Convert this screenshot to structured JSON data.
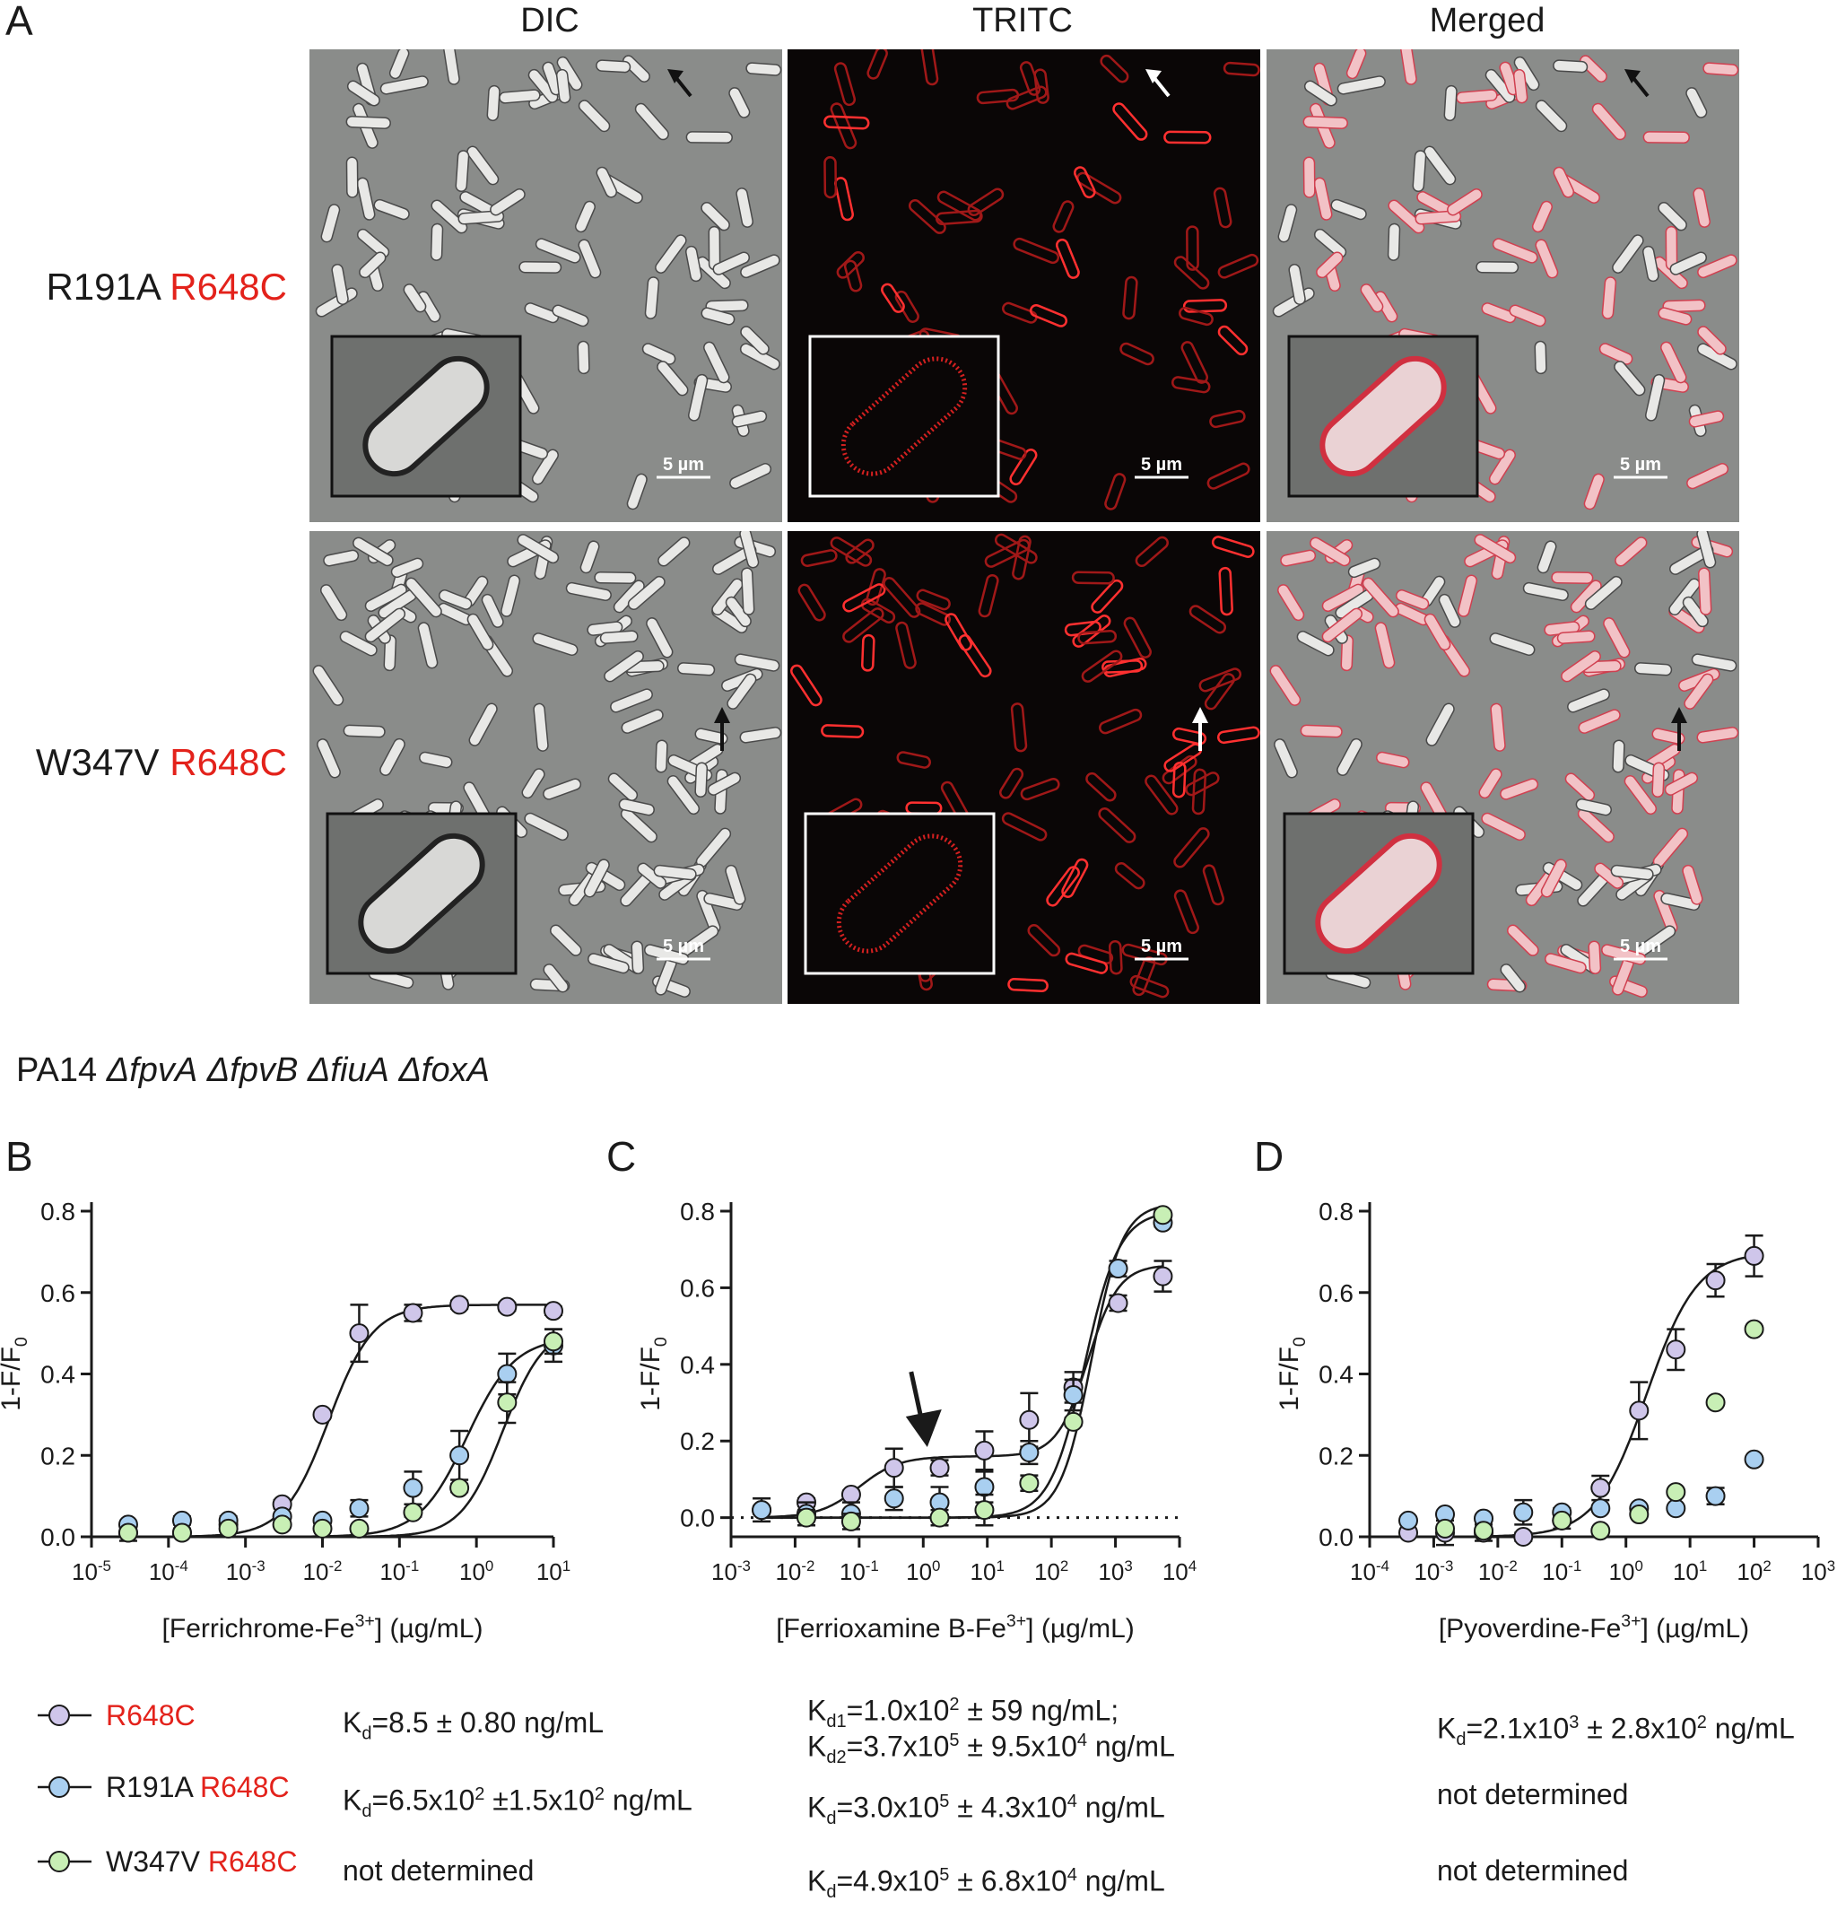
{
  "panels": {
    "a_letter": "A",
    "b_letter": "B",
    "c_letter": "C",
    "d_letter": "D"
  },
  "microscopy": {
    "columns": [
      "DIC",
      "TRITC",
      "Merged"
    ],
    "rows": [
      {
        "mutation": "R191A",
        "suffix": "R648C"
      },
      {
        "mutation": "W347V",
        "suffix": "R648C"
      }
    ],
    "scale_bar": "5 µm"
  },
  "strain": {
    "prefix": "PA14 ",
    "genes": [
      "ΔfpvA",
      "ΔfpvB",
      "ΔfiuA",
      "ΔfoxA"
    ]
  },
  "colors": {
    "R648C": "#cfc6ea",
    "R191A_R648C": "#a9cff0",
    "W347V_R648C": "#c8efb5",
    "red_label": "#e3221b"
  },
  "legend": [
    {
      "name_black": "",
      "name_red": "R648C",
      "color_key": "R648C"
    },
    {
      "name_black": "R191A ",
      "name_red": "R648C",
      "color_key": "R191A_R648C"
    },
    {
      "name_black": "W347V ",
      "name_red": "R648C",
      "color_key": "W347V_R648C"
    }
  ],
  "kd": {
    "B": [
      "K_d=8.5 ± 0.80 ng/mL",
      "K_d=6.5x10^2 ±1.5x10^2 ng/mL",
      "not determined"
    ],
    "C": [
      "K_d1=1.0x10^2 ± 59 ng/mL;",
      "K_d2=3.7x10^5 ± 9.5x10^4 ng/mL",
      "K_d=3.0x10^5 ± 4.3x10^4 ng/mL",
      "K_d=4.9x10^5 ± 6.8x10^4 ng/mL"
    ],
    "D": [
      "K_d=2.1x10^3 ± 2.8x10^2 ng/mL",
      "not determined",
      "not determined"
    ]
  },
  "chart_data": [
    {
      "panel": "B",
      "type": "scatter",
      "xscale": "log",
      "xlabel": "[Ferrichrome-Fe3+] (µg/mL)",
      "ylabel": "1-F/F0",
      "xlim": [
        1e-05,
        10
      ],
      "ylim": [
        0,
        0.8
      ],
      "xticks": [
        "10-5",
        "10-4",
        "10-3",
        "10-2",
        "10-1",
        "100",
        "101"
      ],
      "yticks": [
        "0.0",
        "0.2",
        "0.4",
        "0.6",
        "0.8"
      ],
      "reference_line_y": 0,
      "series": [
        {
          "name": "R648C",
          "color_key": "R648C",
          "x": [
            3e-05,
            0.00015,
            0.0006,
            0.003,
            0.01,
            0.03,
            0.15,
            0.6,
            2.5,
            10
          ],
          "y": [
            0.01,
            0.01,
            0.03,
            0.08,
            0.3,
            0.5,
            0.55,
            0.57,
            0.565,
            0.555
          ],
          "err": [
            0.02,
            0.01,
            0.01,
            0.01,
            0,
            0.07,
            0.02,
            0.01,
            0.01,
            0.01
          ]
        },
        {
          "name": "R191A R648C",
          "color_key": "R191A_R648C",
          "x": [
            3e-05,
            0.00015,
            0.0006,
            0.003,
            0.01,
            0.03,
            0.15,
            0.6,
            2.5,
            10
          ],
          "y": [
            0.03,
            0.04,
            0.04,
            0.05,
            0.04,
            0.07,
            0.12,
            0.2,
            0.4,
            0.47
          ],
          "err": [
            0,
            0.01,
            0.01,
            0,
            0,
            0.02,
            0.04,
            0.06,
            0.05,
            0.04
          ]
        },
        {
          "name": "W347V R648C",
          "color_key": "W347V_R648C",
          "x": [
            3e-05,
            0.00015,
            0.0006,
            0.003,
            0.01,
            0.03,
            0.15,
            0.6,
            2.5,
            10
          ],
          "y": [
            0.01,
            0.01,
            0.02,
            0.03,
            0.02,
            0.02,
            0.06,
            0.12,
            0.33,
            0.48
          ],
          "err": [
            0,
            0,
            0,
            0,
            0,
            0,
            0.01,
            0.01,
            0.05,
            0.03
          ]
        }
      ]
    },
    {
      "panel": "C",
      "type": "scatter",
      "xscale": "log",
      "xlabel": "[Ferrioxamine B-Fe3+] (µg/mL)",
      "ylabel": "1-F/F0",
      "xlim": [
        0.001,
        10000
      ],
      "ylim": [
        -0.05,
        0.8
      ],
      "xticks": [
        "10-3",
        "10-2",
        "10-1",
        "100",
        "101",
        "102",
        "103",
        "104"
      ],
      "yticks": [
        "0.0",
        "0.2",
        "0.4",
        "0.6",
        "0.8"
      ],
      "reference_line_y": 0,
      "series": [
        {
          "name": "R648C",
          "color_key": "R648C",
          "x": [
            0.003,
            0.015,
            0.075,
            0.35,
            1.8,
            9,
            45,
            220,
            1100,
            5500
          ],
          "y": [
            0.02,
            0.04,
            0.06,
            0.13,
            0.13,
            0.175,
            0.255,
            0.34,
            0.56,
            0.63
          ],
          "err": [
            0.01,
            0.01,
            0.01,
            0.05,
            0.02,
            0.05,
            0.07,
            0.04,
            0.02,
            0.04
          ]
        },
        {
          "name": "R191A R648C",
          "color_key": "R191A_R648C",
          "x": [
            0.003,
            0.015,
            0.075,
            0.35,
            1.8,
            9,
            45,
            220,
            1100,
            5500
          ],
          "y": [
            0.02,
            0.01,
            0.01,
            0.05,
            0.04,
            0.08,
            0.17,
            0.32,
            0.65,
            0.77
          ],
          "err": [
            0.03,
            0.03,
            0.03,
            0.03,
            0.04,
            0.04,
            0.03,
            0.04,
            0.02,
            0.01
          ]
        },
        {
          "name": "W347V R648C",
          "color_key": "W347V_R648C",
          "x": [
            0.015,
            0.075,
            1.8,
            9,
            45,
            220,
            5500
          ],
          "y": [
            0.0,
            -0.01,
            0.0,
            0.02,
            0.09,
            0.25,
            0.79
          ],
          "err": [
            0.02,
            0.02,
            0.02,
            0.04,
            0.02,
            0.01,
            0.01
          ]
        }
      ]
    },
    {
      "panel": "D",
      "type": "scatter",
      "xscale": "log",
      "xlabel": "[Pyoverdine-Fe3+] (µg/mL)",
      "ylabel": "1-F/F0",
      "xlim": [
        0.0001,
        1000
      ],
      "ylim": [
        0,
        0.8
      ],
      "xticks": [
        "10-4",
        "10-3",
        "10-2",
        "10-1",
        "100",
        "101",
        "102",
        "103"
      ],
      "yticks": [
        "0.0",
        "0.2",
        "0.4",
        "0.6",
        "0.8"
      ],
      "reference_line_y": 0,
      "series": [
        {
          "name": "R648C",
          "color_key": "R648C",
          "x": [
            0.0004,
            0.0015,
            0.006,
            0.025,
            0.1,
            0.4,
            1.6,
            6,
            25,
            100
          ],
          "y": [
            0.01,
            0.01,
            0.01,
            0.0,
            0.04,
            0.12,
            0.31,
            0.46,
            0.63,
            0.69
          ],
          "err": [
            0,
            0.03,
            0.02,
            0.01,
            0.02,
            0.03,
            0.07,
            0.05,
            0.04,
            0.05
          ]
        },
        {
          "name": "R191A R648C",
          "color_key": "R191A_R648C",
          "x": [
            0.0004,
            0.0015,
            0.006,
            0.025,
            0.1,
            0.4,
            1.6,
            6,
            25,
            100
          ],
          "y": [
            0.04,
            0.055,
            0.045,
            0.06,
            0.06,
            0.07,
            0.07,
            0.07,
            0.1,
            0.19
          ],
          "err": [
            0,
            0,
            0,
            0.03,
            0.01,
            0,
            0,
            0,
            0.02,
            0
          ]
        },
        {
          "name": "W347V R648C",
          "color_key": "W347V_R648C",
          "x": [
            0.0015,
            0.006,
            0.1,
            0.4,
            1.6,
            6,
            25,
            100
          ],
          "y": [
            0.02,
            0.015,
            0.04,
            0.015,
            0.055,
            0.11,
            0.33,
            0.51
          ],
          "err": [
            0,
            0,
            0,
            0,
            0,
            0,
            0,
            0
          ]
        }
      ]
    }
  ]
}
